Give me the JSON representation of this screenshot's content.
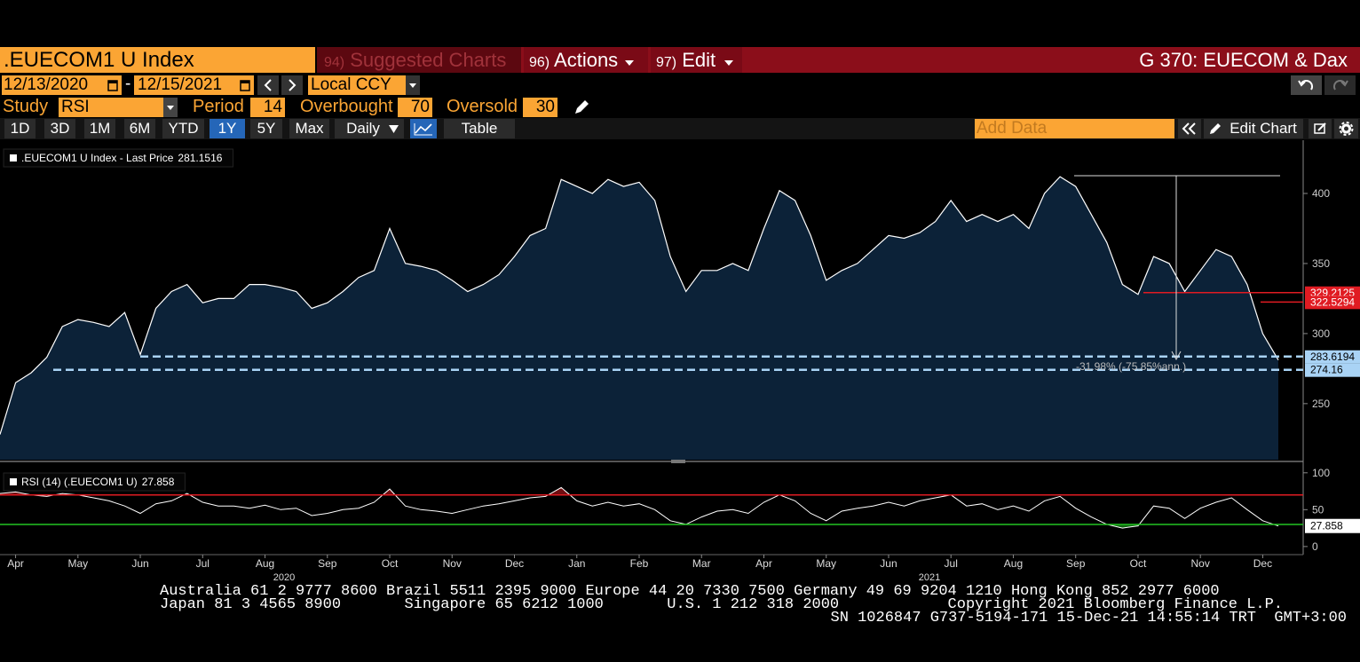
{
  "header": {
    "security": ".EUECOM1 U Index",
    "menu": [
      {
        "num": "94)",
        "label": "Suggested Charts"
      },
      {
        "num": "96)",
        "label": "Actions"
      },
      {
        "num": "97)",
        "label": "Edit"
      }
    ],
    "page_title": "G 370: EUECOM & Dax"
  },
  "controls": {
    "start_date": "12/13/2020",
    "separator": "-",
    "end_date": "12/15/2021",
    "currency": "Local CCY",
    "study_label": "Study",
    "study": "RSI",
    "period_label": "Period",
    "period": 14,
    "overbought_label": "Overbought",
    "overbought": 70,
    "oversold_label": "Oversold",
    "oversold": 30
  },
  "toolbar": {
    "ranges": [
      "1D",
      "3D",
      "1M",
      "6M",
      "YTD",
      "1Y",
      "5Y",
      "Max"
    ],
    "active": "1Y",
    "frequency": "Daily",
    "table": "Table",
    "add_data": "Add Data",
    "edit_chart": "Edit Chart"
  },
  "chart_data": [
    {
      "type": "area",
      "ylim": [
        210,
        438
      ],
      "yticks": [
        250,
        300,
        350,
        400
      ],
      "color": "#ffffff",
      "fill": "#0c2238",
      "series": [
        {
          "name": ".EUECOM1 U Index - Last Price",
          "color": "#ffffff",
          "values": [
            228,
            265,
            272,
            283,
            305,
            310,
            308,
            305,
            315,
            285,
            318,
            330,
            335,
            322,
            325,
            325,
            335,
            335,
            333,
            330,
            318,
            322,
            330,
            340,
            345,
            375,
            350,
            348,
            345,
            338,
            330,
            335,
            342,
            355,
            370,
            375,
            410,
            405,
            400,
            410,
            405,
            408,
            395,
            355,
            330,
            345,
            345,
            350,
            345,
            375,
            402,
            395,
            370,
            338,
            345,
            350,
            360,
            370,
            368,
            372,
            380,
            395,
            380,
            385,
            380,
            385,
            375,
            400,
            412,
            405,
            385,
            365,
            335,
            328,
            355,
            350,
            330,
            345,
            360,
            355,
            335,
            300,
            281.1516
          ]
        }
      ],
      "levels": [
        {
          "value": 329.2125,
          "color": "#e01b22",
          "style": "solid"
        },
        {
          "value": 322.5294,
          "color": "#e01b22",
          "style": "solid"
        },
        {
          "value": 283.6194,
          "color": "#a9d3f5",
          "style": "dashed"
        },
        {
          "value": 274.16,
          "color": "#a9d3f5",
          "style": "dashed"
        }
      ],
      "level_labels": true,
      "annotations": [
        {
          "text": "-31.98% (-75.85%ann.)"
        }
      ]
    },
    {
      "type": "line",
      "ylim": [
        -11,
        113
      ],
      "yticks": [
        0,
        50,
        100
      ],
      "color": "#ffffff",
      "categories": [
        null,
        "Apr",
        null,
        null,
        null,
        "May",
        null,
        null,
        null,
        "Jun",
        null,
        null,
        null,
        "Jul",
        null,
        null,
        null,
        "Aug",
        null,
        null,
        null,
        "Sep",
        null,
        null,
        null,
        "Oct",
        null,
        null,
        null,
        "Nov",
        null,
        null,
        null,
        "Dec",
        null,
        null,
        null,
        "Jan",
        null,
        null,
        null,
        "Feb",
        null,
        null,
        null,
        "Mar",
        null,
        null,
        null,
        "Apr",
        null,
        null,
        null,
        "May",
        null,
        null,
        null,
        "Jun",
        null,
        null,
        null,
        "Jul",
        null,
        null,
        null,
        "Aug",
        null,
        null,
        null,
        "Sep",
        null,
        null,
        null,
        "Oct",
        null,
        null,
        null,
        "Nov",
        null,
        null,
        null,
        "Dec",
        null
      ],
      "years": [
        "2020",
        "2021"
      ],
      "series": [
        {
          "name": "RSI (14) (.EUECOM1 U)",
          "color": "#ffffff",
          "values": [
            72,
            74,
            70,
            68,
            72,
            70,
            66,
            62,
            55,
            45,
            58,
            62,
            72,
            60,
            55,
            55,
            52,
            56,
            50,
            52,
            42,
            45,
            50,
            52,
            60,
            78,
            55,
            50,
            48,
            45,
            50,
            55,
            58,
            62,
            66,
            68,
            80,
            62,
            55,
            60,
            55,
            58,
            50,
            35,
            30,
            40,
            48,
            50,
            45,
            60,
            70,
            62,
            45,
            35,
            48,
            52,
            55,
            60,
            55,
            62,
            66,
            70,
            55,
            58,
            50,
            55,
            48,
            62,
            68,
            52,
            40,
            30,
            25,
            28,
            55,
            52,
            38,
            52,
            60,
            66,
            50,
            35,
            27.858
          ]
        }
      ],
      "levels": [
        {
          "value": 70,
          "color": "#e01b22",
          "style": "solid",
          "fill": "above"
        },
        {
          "value": 30,
          "color": "#22c422",
          "style": "solid",
          "fill": "below"
        }
      ],
      "last_value_box": true
    }
  ],
  "footer": {
    "lines": [
      "Australia 61 2 9777 8600 Brazil 5511 2395 9000 Europe 44 20 7330 7500 Germany 49 69 9204 1210 Hong Kong 852 2977 6000",
      "Japan 81 3 4565 8900       Singapore 65 6212 1000       U.S. 1 212 318 2000            Copyright 2021 Bloomberg Finance L.P.",
      "SN 1026847 G737-5194-171 15-Dec-21 14:55:14 TRT  GMT+3:00"
    ]
  }
}
